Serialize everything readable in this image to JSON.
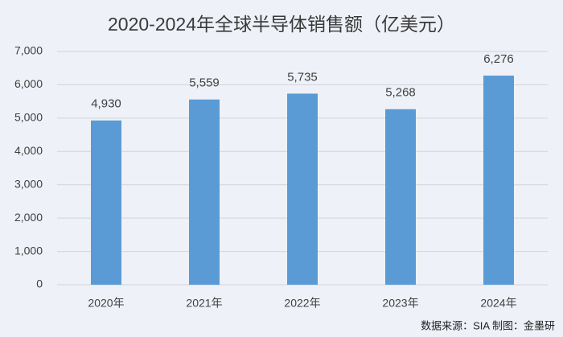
{
  "chart_data": {
    "type": "bar",
    "title": "2020-2024年全球半导体销售额（亿美元）",
    "categories": [
      "2020年",
      "2021年",
      "2022年",
      "2023年",
      "2024年"
    ],
    "values": [
      4930,
      5559,
      5735,
      5268,
      6276
    ],
    "value_labels": [
      "4,930",
      "5,559",
      "5,735",
      "5,268",
      "6,276"
    ],
    "color": "#5b9bd5",
    "ylim": [
      0,
      7000
    ],
    "yticks": [
      0,
      {
        "value": 1000,
        "label": "1,000"
      },
      {
        "value": 2000,
        "label": "2,000"
      },
      {
        "value": 3000,
        "label": "3,000"
      },
      {
        "value": 4000,
        "label": "4,000"
      },
      {
        "value": 5000,
        "label": "5,000"
      },
      {
        "value": 6000,
        "label": "6,000"
      },
      {
        "value": 7000,
        "label": "7,000"
      }
    ],
    "grid": true,
    "source": "数据来源：SIA   制图：金墨研"
  }
}
